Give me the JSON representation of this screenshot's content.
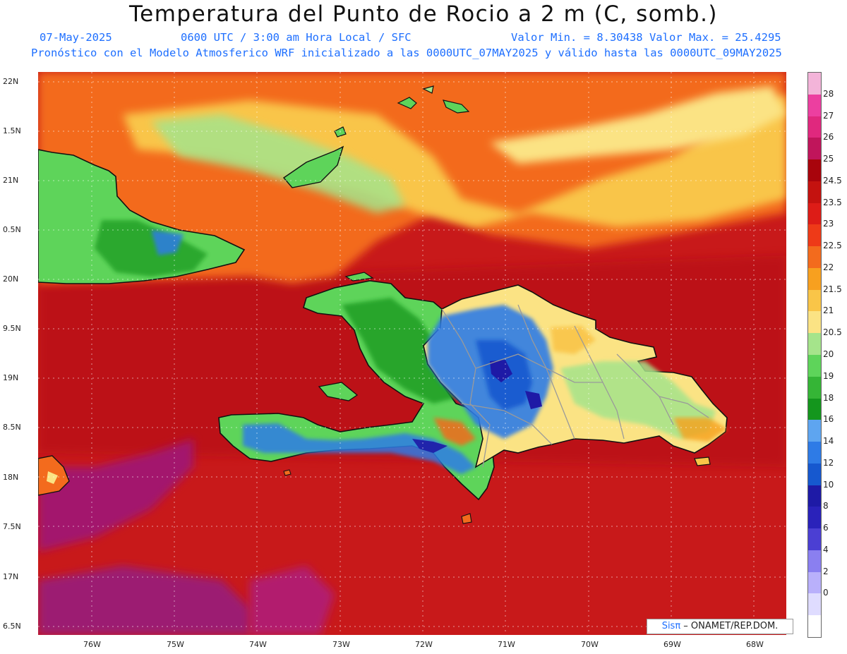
{
  "header": {
    "title": "Temperatura del Punto de Rocio a 2 m (C, somb.)",
    "date": "07-May-2025",
    "time": "0600 UTC / 3:00 am Hora Local / SFC",
    "minmax": "Valor Min. = 8.30438  Valor Max. = 25.4295",
    "model": "Pronóstico con el Modelo Atmosferico WRF inicializado a las 0000UTC_07MAY2025 y válido hasta las  0000UTC_09MAY2025"
  },
  "axes": {
    "lat_labels": [
      "22N",
      "1.5N",
      "21N",
      "0.5N",
      "20N",
      "9.5N",
      "19N",
      "8.5N",
      "18N",
      "7.5N",
      "17N",
      "6.5N"
    ],
    "lon_labels": [
      "76W",
      "75W",
      "74W",
      "73W",
      "72W",
      "71W",
      "70W",
      "69W",
      "68W"
    ]
  },
  "colorbar": {
    "labels": [
      "28",
      "27",
      "26",
      "25",
      "24.5",
      "23.5",
      "23",
      "22.5",
      "22",
      "21.5",
      "21",
      "20.5",
      "20",
      "19",
      "18",
      "16",
      "14",
      "12",
      "10",
      "8",
      "6",
      "4",
      "2",
      "0"
    ],
    "colors": [
      "#f3b4d9",
      "#ec3fa0",
      "#e0287e",
      "#c0155b",
      "#a8040c",
      "#c4120f",
      "#dd1c17",
      "#ee3a18",
      "#f36b1d",
      "#f7a01f",
      "#f9c548",
      "#fbe384",
      "#a5e48b",
      "#5ed45a",
      "#35b536",
      "#14961d",
      "#5ea5f0",
      "#2e7be6",
      "#1658cf",
      "#1e1aa6",
      "#2a22ba",
      "#4b3fd3",
      "#8a7ff0",
      "#b9b0fb",
      "#dfdcff",
      "#ffffff"
    ]
  },
  "credit": {
    "brand": "Sisπ",
    "text": " – ONAMET/REP.DOM."
  },
  "features": [
    "cuba-east",
    "great-inagua",
    "turks-caicos",
    "jamaica",
    "hispaniola-haiti",
    "hispaniola-dr",
    "gonave",
    "tortuga",
    "saona",
    "beata"
  ]
}
